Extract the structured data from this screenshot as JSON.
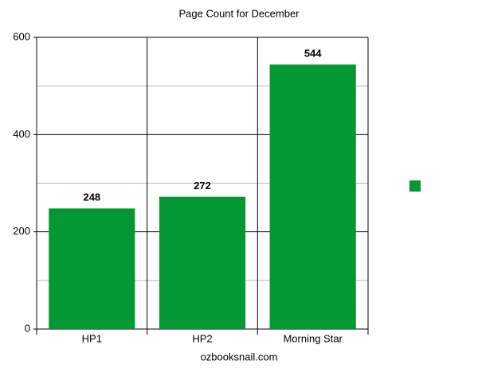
{
  "chart_data": {
    "type": "bar",
    "title": "Page Count for December",
    "categories": [
      "HP1",
      "HP2",
      "Morning Star"
    ],
    "values": [
      248,
      272,
      544
    ],
    "color": "#039834",
    "ylim": [
      0,
      600
    ],
    "yticks": [
      0,
      200,
      400,
      600
    ],
    "minor_yticks": [
      100,
      300,
      500
    ],
    "x_label": "ozbooksnail.com",
    "grid": true
  }
}
